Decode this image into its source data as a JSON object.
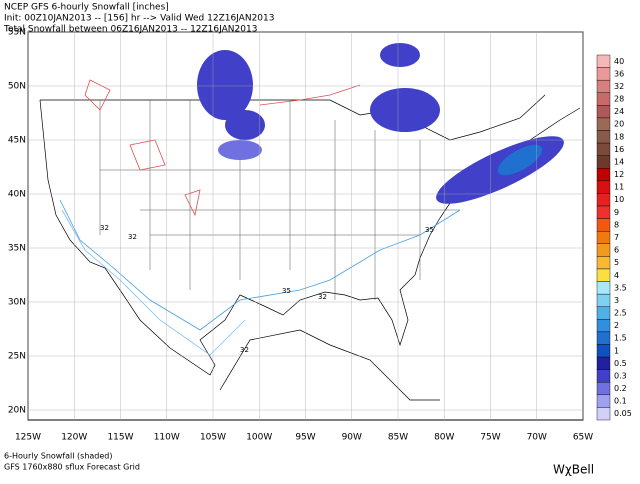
{
  "header": {
    "line1": "NCEP GFS 6-hourly Snowfall [inches]",
    "line2": "Init: 00Z10JAN2013 -- [156] hr --> Valid Wed 12Z16JAN2013",
    "line3": "Total Snowfall between 06Z16JAN2013 -- 12Z16JAN2013"
  },
  "lat_labels": [
    "55N",
    "50N",
    "45N",
    "40N",
    "35N",
    "30N",
    "25N",
    "20N"
  ],
  "lon_labels": [
    "125W",
    "120W",
    "115W",
    "110W",
    "105W",
    "100W",
    "95W",
    "90W",
    "85W",
    "80W",
    "75W",
    "70W",
    "65W"
  ],
  "colorbar": [
    {
      "label": "40",
      "color": "#f4b8b8"
    },
    {
      "label": "36",
      "color": "#e89a9a"
    },
    {
      "label": "32",
      "color": "#d88080"
    },
    {
      "label": "28",
      "color": "#c86a6a"
    },
    {
      "label": "24",
      "color": "#b05858"
    },
    {
      "label": "20",
      "color": "#9a6a58"
    },
    {
      "label": "18",
      "color": "#8a5a48"
    },
    {
      "label": "16",
      "color": "#7a4a3a"
    },
    {
      "label": "14",
      "color": "#6a3a2a"
    },
    {
      "label": "12",
      "color": "#c00000"
    },
    {
      "label": "11",
      "color": "#d81010"
    },
    {
      "label": "10",
      "color": "#e82020"
    },
    {
      "label": "9",
      "color": "#f03030"
    },
    {
      "label": "8",
      "color": "#f05a10"
    },
    {
      "label": "7",
      "color": "#f07a10"
    },
    {
      "label": "6",
      "color": "#f09a20"
    },
    {
      "label": "5",
      "color": "#f8b830"
    },
    {
      "label": "4",
      "color": "#f8e040"
    },
    {
      "label": "3.5",
      "color": "#a8e8f8"
    },
    {
      "label": "3",
      "color": "#80d0f0"
    },
    {
      "label": "2.5",
      "color": "#50b0e8"
    },
    {
      "label": "2",
      "color": "#3090e0"
    },
    {
      "label": "1.5",
      "color": "#2070d0"
    },
    {
      "label": "1",
      "color": "#1050c0"
    },
    {
      "label": "0.5",
      "color": "#2020a0"
    },
    {
      "label": "0.3",
      "color": "#4040c8"
    },
    {
      "label": "0.2",
      "color": "#7070e0"
    },
    {
      "label": "0.1",
      "color": "#a0a0f0"
    },
    {
      "label": "0.05",
      "color": "#d0d0f8"
    }
  ],
  "contour_labels": [
    "32",
    "32",
    "35",
    "32",
    "32",
    "35"
  ],
  "footer": {
    "line1": "6-Hourly Snowfall (shaded)",
    "line2": "GFS 1760x880 sflux Forecast Grid",
    "brand": "WχBell"
  }
}
